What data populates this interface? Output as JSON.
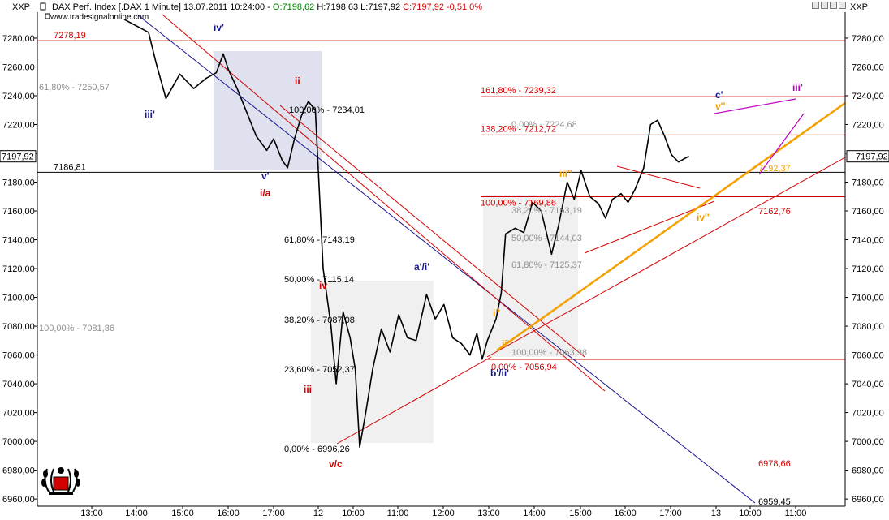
{
  "header": {
    "symbol_left": "XXP",
    "symbol_right": "XXP",
    "title": "DAX Perf. Index [.DAX  1 Minute] 13.07.2011 10:24:00 - ",
    "open": "O:7198,62",
    "high": "H:7198,63",
    "low": "L:7197,92",
    "close_change": "C:7197,92 -0,51 0%",
    "watermark": "www.tradesignalonline.com"
  },
  "colors": {
    "price": "#000000",
    "red": "#d40000",
    "navy": "#14148c",
    "orange": "#f5a000",
    "magenta": "#c000c0",
    "box": "#dfe1ee",
    "box_gray": "#f0f0f0",
    "fibgray": "#909090"
  },
  "chart_data": {
    "type": "line",
    "title": "DAX Perf. Index [.DAX 1 Minute]",
    "ylim": [
      6955,
      7298
    ],
    "y_ticks": [
      "6960,00",
      "6980,00",
      "7000,00",
      "7020,00",
      "7040,00",
      "7060,00",
      "7080,00",
      "7100,00",
      "7120,00",
      "7140,00",
      "7160,00",
      "7180,00",
      "7200,00",
      "7220,00",
      "7240,00",
      "7260,00",
      "7280,00"
    ],
    "x_ticks": [
      "13:00",
      "14:00",
      "15:00",
      "16:00",
      "17:00",
      "12",
      "10:00",
      "11:00",
      "12:00",
      "13:00",
      "14:00",
      "15:00",
      "16:00",
      "17:00",
      "13",
      "10:00",
      "11:00"
    ],
    "last_price": "7197,92",
    "price_keypoints": [
      [
        0.0,
        7293
      ],
      [
        1.4,
        7284
      ],
      [
        1.85,
        7262
      ],
      [
        2.4,
        7238
      ],
      [
        3.2,
        7255
      ],
      [
        4.0,
        7245
      ],
      [
        4.7,
        7252
      ],
      [
        5.3,
        7256
      ],
      [
        5.7,
        7269
      ],
      [
        6.0,
        7258
      ],
      [
        6.5,
        7245
      ],
      [
        7.0,
        7230
      ],
      [
        7.6,
        7212
      ],
      [
        8.2,
        7202
      ],
      [
        8.6,
        7210
      ],
      [
        9.1,
        7195
      ],
      [
        9.4,
        7190
      ],
      [
        9.8,
        7210
      ],
      [
        10.2,
        7226
      ],
      [
        10.6,
        7236
      ],
      [
        11.0,
        7230
      ],
      [
        11.45,
        7120
      ],
      [
        11.9,
        7080
      ],
      [
        12.2,
        7040
      ],
      [
        12.6,
        7090
      ],
      [
        13.0,
        7072
      ],
      [
        13.3,
        7050
      ],
      [
        13.55,
        6996
      ],
      [
        13.9,
        7020
      ],
      [
        14.3,
        7050
      ],
      [
        14.8,
        7078
      ],
      [
        15.3,
        7062
      ],
      [
        15.8,
        7088
      ],
      [
        16.3,
        7072
      ],
      [
        16.8,
        7070
      ],
      [
        17.4,
        7102
      ],
      [
        17.9,
        7085
      ],
      [
        18.4,
        7095
      ],
      [
        18.9,
        7072
      ],
      [
        19.4,
        7068
      ],
      [
        19.9,
        7060
      ],
      [
        20.3,
        7075
      ],
      [
        20.6,
        7057
      ],
      [
        20.9,
        7070
      ],
      [
        21.4,
        7085
      ],
      [
        21.7,
        7103
      ],
      [
        21.95,
        7144
      ],
      [
        22.5,
        7148
      ],
      [
        23.0,
        7145
      ],
      [
        23.5,
        7166
      ],
      [
        24.0,
        7160
      ],
      [
        24.6,
        7130
      ],
      [
        25.0,
        7150
      ],
      [
        25.5,
        7180
      ],
      [
        25.9,
        7168
      ],
      [
        26.3,
        7188
      ],
      [
        26.8,
        7170
      ],
      [
        27.3,
        7165
      ],
      [
        27.7,
        7155
      ],
      [
        28.1,
        7168
      ],
      [
        28.6,
        7172
      ],
      [
        29.0,
        7166
      ],
      [
        29.4,
        7175
      ],
      [
        29.9,
        7190
      ],
      [
        30.3,
        7220
      ],
      [
        30.7,
        7223
      ],
      [
        31.1,
        7212
      ],
      [
        31.5,
        7199
      ],
      [
        31.9,
        7194
      ],
      [
        32.2,
        7196
      ],
      [
        32.5,
        7198
      ]
    ],
    "horizontal_lines": [
      {
        "price": 7278.19,
        "color": "red",
        "label": "7278,19"
      },
      {
        "price": 7186.81,
        "color": "black",
        "label": "7186,81"
      },
      {
        "price": 7239.32,
        "color": "red",
        "label": "161,80% - 7239,32"
      },
      {
        "price": 7212.72,
        "color": "red",
        "label": "138,20% - 7212,72"
      },
      {
        "price": 7169.86,
        "color": "red",
        "label": "100,00% - 7169,86"
      },
      {
        "price": 7056.94,
        "color": "red",
        "label": "0,00% - 7056,94"
      }
    ],
    "fib_labels": [
      {
        "text": "61,80% - 7250,57",
        "color": "gray"
      },
      {
        "text": "100,00% - 7234,01",
        "color": "black"
      },
      {
        "text": "100,00% - 7081,86",
        "color": "gray"
      },
      {
        "text": "61,80% - 7143,19",
        "color": "black"
      },
      {
        "text": "50,00% - 7115,14",
        "color": "black"
      },
      {
        "text": "38,20% - 7087,08",
        "color": "black"
      },
      {
        "text": "23,60% - 7052,37",
        "color": "black"
      },
      {
        "text": "0,00% - 6996,26",
        "color": "black"
      },
      {
        "text": "0,00% - 7224,68",
        "color": "gray"
      },
      {
        "text": "38,20% - 7163,19",
        "color": "gray"
      },
      {
        "text": "50,00% - 7144,03",
        "color": "gray"
      },
      {
        "text": "61,80% - 7125,37",
        "color": "gray"
      },
      {
        "text": "100,00% - 7063,98",
        "color": "gray"
      }
    ],
    "level_labels": [
      {
        "text": "7162,76",
        "color": "red"
      },
      {
        "text": "7192,37",
        "color": "orange"
      },
      {
        "text": "6978,66",
        "color": "red"
      },
      {
        "text": "6959,45",
        "color": "black"
      }
    ],
    "wave_labels": [
      {
        "text": "iv'",
        "color": "navy"
      },
      {
        "text": "iii'",
        "color": "navy"
      },
      {
        "text": "ii",
        "color": "red"
      },
      {
        "text": "v'",
        "color": "navy"
      },
      {
        "text": "i/a",
        "color": "red"
      },
      {
        "text": "iv",
        "color": "red"
      },
      {
        "text": "iii",
        "color": "red"
      },
      {
        "text": "v/c",
        "color": "red"
      },
      {
        "text": "a'/i'",
        "color": "navy"
      },
      {
        "text": "i''",
        "color": "orange"
      },
      {
        "text": "ii''",
        "color": "orange"
      },
      {
        "text": "b'/ii'",
        "color": "navy"
      },
      {
        "text": "iii''",
        "color": "orange"
      },
      {
        "text": "c'",
        "color": "navy"
      },
      {
        "text": "v''",
        "color": "orange"
      },
      {
        "text": "iv''",
        "color": "orange"
      },
      {
        "text": "iii'",
        "color": "magenta"
      }
    ]
  }
}
